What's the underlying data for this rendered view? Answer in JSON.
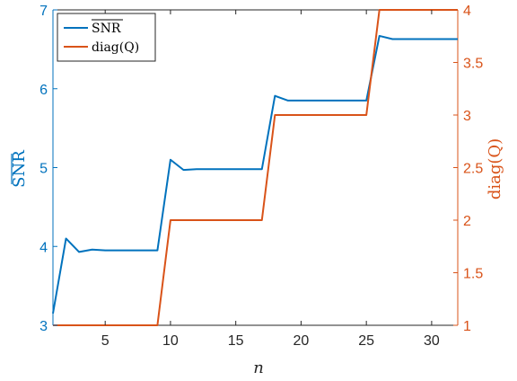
{
  "chart_data": {
    "type": "line",
    "xlabel": "n",
    "ylabel_left": "SNR",
    "ylabel_right": "diag(Q)",
    "left_ylabel_overline": true,
    "xlim": [
      1,
      32
    ],
    "ylim_left": [
      3,
      7
    ],
    "ylim_right": [
      1,
      4
    ],
    "x_ticks": [
      5,
      10,
      15,
      20,
      25,
      30
    ],
    "y_ticks_left": [
      3,
      4,
      5,
      6,
      7
    ],
    "y_ticks_right": [
      1,
      1.5,
      2,
      2.5,
      3,
      3.5,
      4
    ],
    "grid": false,
    "legend_position": "top-left",
    "colors": {
      "left_axis": "#0072BD",
      "right_axis": "#D95319",
      "box": "#262626"
    },
    "series": [
      {
        "name": "SNR",
        "legend_overline": true,
        "axis": "left",
        "color": "#0072BD",
        "x": [
          1,
          2,
          3,
          4,
          5,
          6,
          7,
          8,
          9,
          10,
          11,
          12,
          13,
          14,
          15,
          16,
          17,
          18,
          19,
          20,
          21,
          22,
          23,
          24,
          25,
          26,
          27,
          28,
          29,
          30,
          31,
          32
        ],
        "y": [
          3.15,
          4.1,
          3.93,
          3.96,
          3.95,
          3.95,
          3.95,
          3.95,
          3.95,
          5.1,
          4.97,
          4.98,
          4.98,
          4.98,
          4.98,
          4.98,
          4.98,
          5.91,
          5.85,
          5.85,
          5.85,
          5.85,
          5.85,
          5.85,
          5.85,
          6.67,
          6.63,
          6.63,
          6.63,
          6.63,
          6.63,
          6.63
        ]
      },
      {
        "name": "diag(Q)",
        "axis": "right",
        "color": "#D95319",
        "x": [
          1,
          2,
          3,
          4,
          5,
          6,
          7,
          8,
          9,
          10,
          11,
          12,
          13,
          14,
          15,
          16,
          17,
          18,
          19,
          20,
          21,
          22,
          23,
          24,
          25,
          26,
          27,
          28,
          29,
          30,
          31,
          32
        ],
        "y": [
          1,
          1,
          1,
          1,
          1,
          1,
          1,
          1,
          1,
          2,
          2,
          2,
          2,
          2,
          2,
          2,
          2,
          3,
          3,
          3,
          3,
          3,
          3,
          3,
          3,
          4,
          4,
          4,
          4,
          4,
          4,
          4
        ]
      }
    ]
  }
}
